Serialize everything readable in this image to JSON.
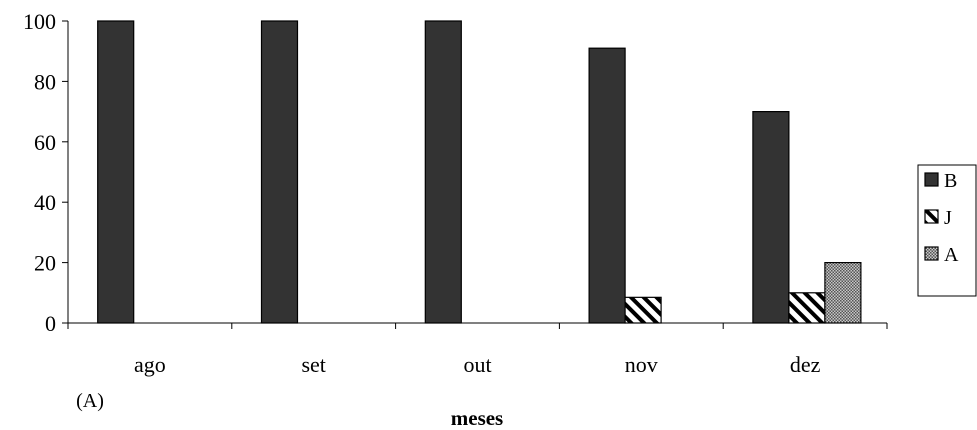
{
  "chart_data": {
    "type": "bar",
    "categories": [
      "ago",
      "set",
      "out",
      "nov",
      "dez"
    ],
    "series": [
      {
        "name": "B",
        "values": [
          100,
          100,
          100,
          91,
          70
        ],
        "color": "#333333",
        "pattern": "solid"
      },
      {
        "name": "J",
        "values": [
          0,
          0,
          0,
          8.5,
          10
        ],
        "color": "#ffffff",
        "pattern": "diagonal-hatch"
      },
      {
        "name": "A",
        "values": [
          0,
          0,
          0,
          0,
          20
        ],
        "color": "#999999",
        "pattern": "dotted"
      }
    ],
    "title": "",
    "xlabel": "meses",
    "ylabel": "",
    "ylim": [
      0,
      100
    ],
    "yticks": [
      0,
      20,
      40,
      60,
      80,
      100
    ],
    "grid": false,
    "legend_position": "right",
    "panel_label": "(A)"
  }
}
